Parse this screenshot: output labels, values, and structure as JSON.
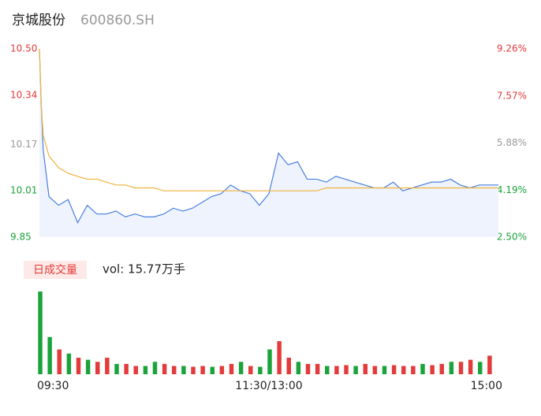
{
  "header": {
    "name": "京城股份",
    "code": "600860.SH"
  },
  "chart_data": {
    "type": "intraday",
    "xlim": [
      0,
      240
    ],
    "xticks": [
      {
        "value": 0,
        "label": "09:30"
      },
      {
        "value": 120,
        "label": "11:30/13:00"
      },
      {
        "value": 240,
        "label": "15:00"
      }
    ],
    "ylim": [
      9.85,
      10.5
    ],
    "yticks": [
      {
        "value": 10.5,
        "label": "10.50"
      },
      10.34,
      10.17,
      10.01,
      9.85
    ],
    "y2lim": [
      2.5,
      9.26
    ],
    "y2ticks": [
      {
        "value": 9.26,
        "label": "9.26%"
      },
      {
        "value": 7.57,
        "label": "7.57%"
      },
      {
        "value": 5.88,
        "label": "5.88%"
      },
      {
        "value": 4.19,
        "label": "4.19%"
      },
      {
        "value": 2.5,
        "label": "2.50%"
      }
    ],
    "x": [
      0,
      1,
      2,
      5,
      10,
      15,
      20,
      25,
      30,
      35,
      40,
      45,
      50,
      55,
      60,
      65,
      70,
      75,
      80,
      85,
      90,
      95,
      100,
      105,
      110,
      115,
      120,
      125,
      130,
      135,
      140,
      145,
      150,
      155,
      160,
      165,
      170,
      175,
      180,
      185,
      190,
      195,
      200,
      205,
      210,
      215,
      220,
      225,
      230,
      235,
      240
    ],
    "series": [
      {
        "color": "#4a7fe0",
        "values": [
          10.5,
          10.3,
          10.15,
          9.99,
          9.96,
          9.98,
          9.9,
          9.96,
          9.93,
          9.93,
          9.94,
          9.92,
          9.93,
          9.92,
          9.92,
          9.93,
          9.95,
          9.94,
          9.95,
          9.97,
          9.99,
          10.0,
          10.03,
          10.01,
          10.0,
          9.96,
          10.0,
          10.14,
          10.1,
          10.11,
          10.05,
          10.05,
          10.04,
          10.06,
          10.05,
          10.04,
          10.03,
          10.02,
          10.02,
          10.04,
          10.01,
          10.02,
          10.03,
          10.04,
          10.04,
          10.05,
          10.03,
          10.02,
          10.03,
          10.03,
          10.03
        ]
      },
      {
        "color": "#f2b33d",
        "values": [
          10.5,
          10.3,
          10.2,
          10.13,
          10.09,
          10.07,
          10.06,
          10.05,
          10.05,
          10.04,
          10.03,
          10.03,
          10.02,
          10.02,
          10.02,
          10.01,
          10.01,
          10.01,
          10.01,
          10.01,
          10.01,
          10.01,
          10.01,
          10.01,
          10.01,
          10.01,
          10.01,
          10.01,
          10.01,
          10.01,
          10.01,
          10.01,
          10.02,
          10.02,
          10.02,
          10.02,
          10.02,
          10.02,
          10.02,
          10.02,
          10.02,
          10.02,
          10.02,
          10.02,
          10.02,
          10.02,
          10.02,
          10.02,
          10.02,
          10.02,
          10.02
        ]
      }
    ],
    "volume": {
      "label": "日成交量",
      "summary": "vol: 15.77万手",
      "x": [
        0,
        5,
        10,
        15,
        20,
        25,
        30,
        35,
        40,
        45,
        50,
        55,
        60,
        65,
        70,
        75,
        80,
        85,
        90,
        95,
        100,
        105,
        110,
        115,
        120,
        125,
        130,
        135,
        140,
        145,
        150,
        155,
        160,
        165,
        170,
        175,
        180,
        185,
        190,
        195,
        200,
        205,
        210,
        215,
        220,
        225,
        230,
        235
      ],
      "values": [
        20000,
        9000,
        6000,
        5000,
        4000,
        3500,
        3000,
        4000,
        2500,
        2500,
        2000,
        2000,
        3000,
        2500,
        2000,
        2000,
        1800,
        2000,
        1800,
        2000,
        2500,
        3000,
        2000,
        1800,
        6000,
        8000,
        4000,
        3000,
        2500,
        2500,
        2000,
        2000,
        2200,
        2000,
        2500,
        2000,
        2000,
        2200,
        2000,
        2000,
        2500,
        2200,
        2500,
        3000,
        3000,
        3500,
        3000,
        4500
      ],
      "colors": [
        "#1aa33a",
        "#1aa33a",
        "#e33b3b",
        "#1aa33a",
        "#e33b3b",
        "#1aa33a",
        "#e33b3b",
        "#e33b3b",
        "#1aa33a",
        "#e33b3b",
        "#e33b3b",
        "#1aa33a",
        "#1aa33a",
        "#e33b3b",
        "#e33b3b",
        "#1aa33a",
        "#e33b3b",
        "#e33b3b",
        "#1aa33a",
        "#e33b3b",
        "#e33b3b",
        "#1aa33a",
        "#e33b3b",
        "#1aa33a",
        "#1aa33a",
        "#e33b3b",
        "#e33b3b",
        "#1aa33a",
        "#e33b3b",
        "#e33b3b",
        "#1aa33a",
        "#e33b3b",
        "#e33b3b",
        "#1aa33a",
        "#e33b3b",
        "#e33b3b",
        "#1aa33a",
        "#e33b3b",
        "#e33b3b",
        "#e33b3b",
        "#1aa33a",
        "#e33b3b",
        "#e33b3b",
        "#1aa33a",
        "#e33b3b",
        "#e33b3b",
        "#1aa33a",
        "#e33b3b"
      ]
    }
  }
}
